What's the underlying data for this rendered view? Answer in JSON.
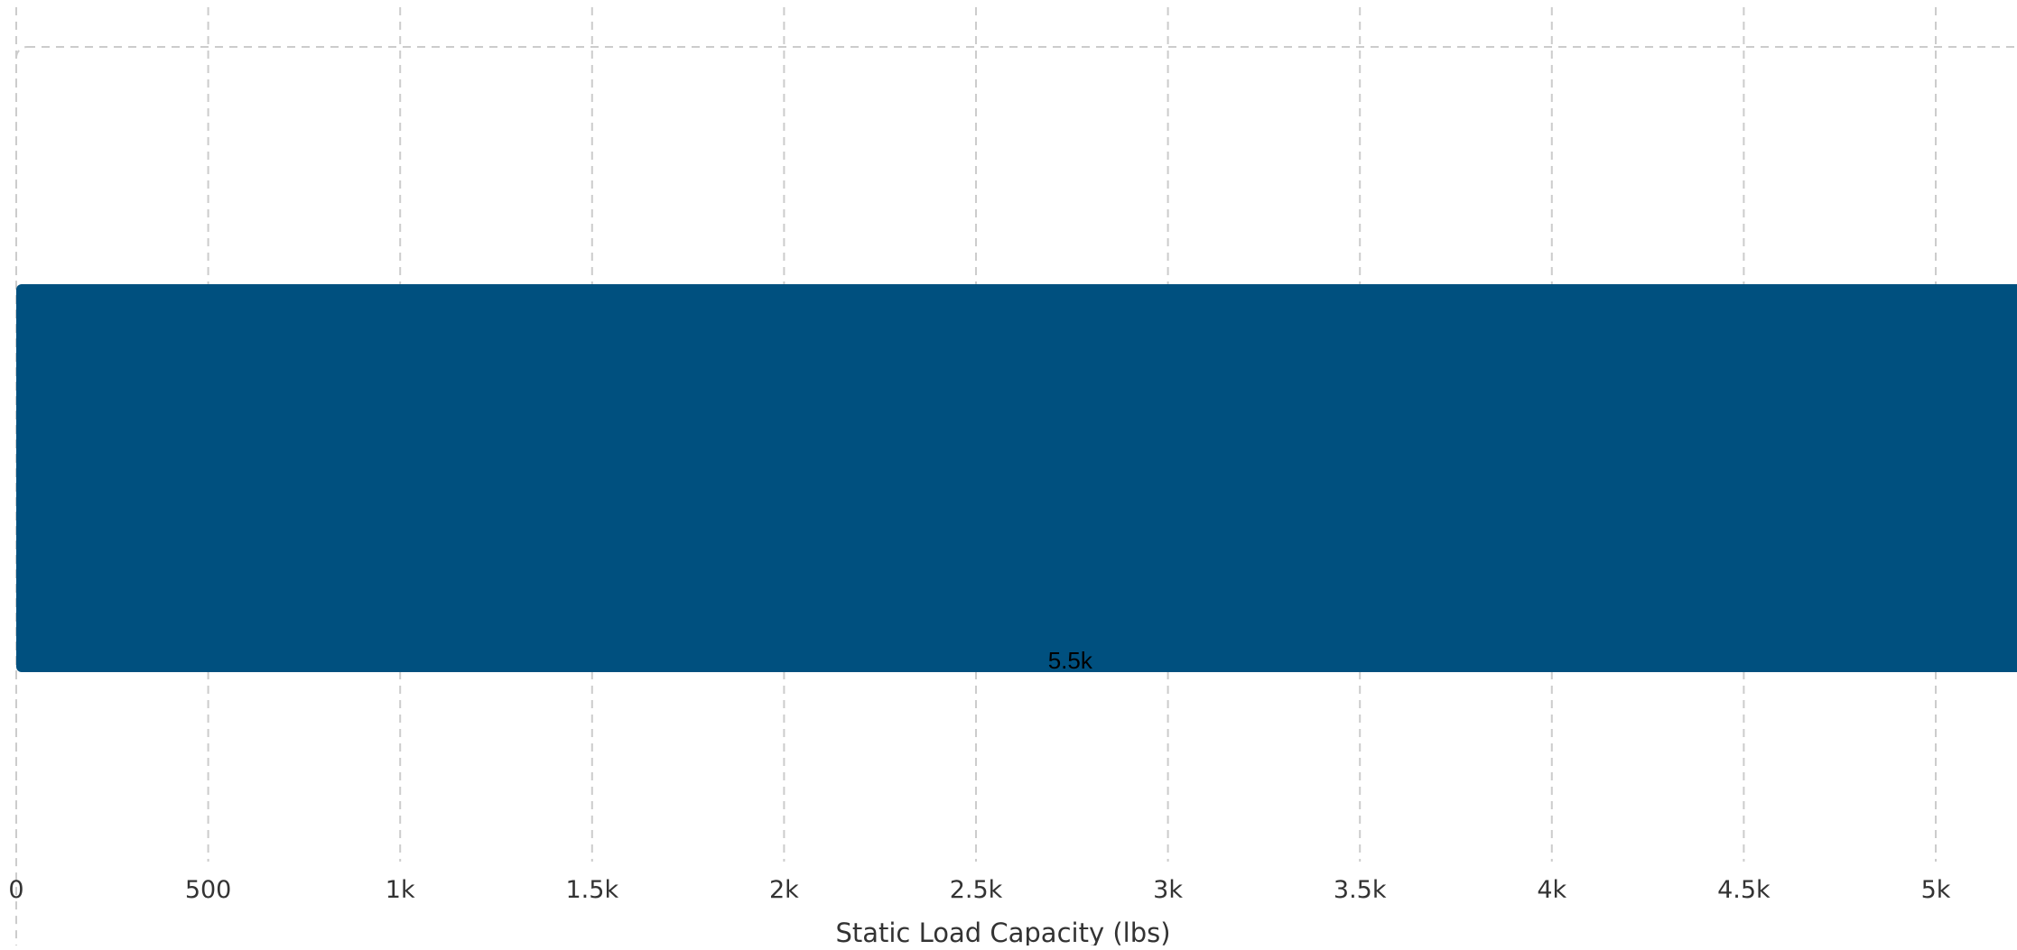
{
  "chart_data": {
    "type": "bar",
    "orientation": "horizontal",
    "categories": [
      ""
    ],
    "values": [
      5500
    ],
    "data_labels": [
      "5.5k"
    ],
    "xlabel": "Static Load Capacity (lbs)",
    "ylabel": "",
    "xlim": [
      0,
      5500
    ],
    "x_ticks": [
      0,
      500,
      1000,
      1500,
      2000,
      2500,
      3000,
      3500,
      4000,
      4500,
      5000
    ],
    "x_tick_labels": [
      "0",
      "500",
      "1k",
      "1.5k",
      "2k",
      "2.5k",
      "3k",
      "3.5k",
      "4k",
      "4.5k",
      "5k"
    ],
    "grid": true,
    "legend": "none",
    "colors": {
      "bar": "#00507f",
      "grid": "#cccccc",
      "text": "#333333"
    }
  }
}
